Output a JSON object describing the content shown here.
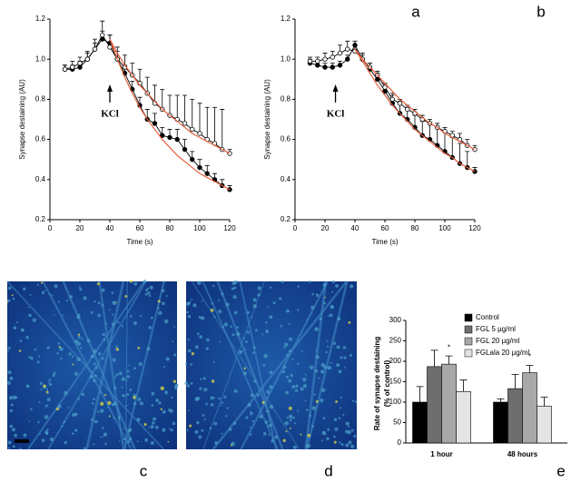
{
  "chart_data": [
    {
      "type": "line",
      "panel_label": "a",
      "x_label": "Time (s)",
      "y_label": "Synapse destaining (AU)",
      "annotation": {
        "text": "KCl",
        "x": 40
      },
      "x": [
        10,
        15,
        20,
        25,
        30,
        35,
        40,
        45,
        50,
        55,
        60,
        65,
        70,
        75,
        80,
        85,
        90,
        95,
        100,
        105,
        110,
        115,
        120
      ],
      "xlim": [
        0,
        120
      ],
      "xticks": [
        0,
        20,
        40,
        60,
        80,
        100,
        120
      ],
      "ylim": [
        0.2,
        1.2
      ],
      "yticks": [
        0.2,
        0.4,
        0.6,
        0.8,
        {
          "value": 1,
          "label": "1.0"
        },
        1.2
      ],
      "series": [
        {
          "color": "#000000",
          "marker": "filled",
          "values": [
            0.95,
            0.95,
            0.96,
            1.0,
            1.05,
            1.1,
            1.08,
            1.0,
            0.93,
            0.85,
            0.77,
            0.7,
            0.68,
            0.62,
            0.61,
            0.6,
            0.55,
            0.5,
            0.46,
            0.43,
            0.4,
            0.37,
            0.35
          ],
          "errors": [
            0.02,
            0.02,
            0.03,
            0.03,
            0.03,
            0.04,
            0.04,
            0.04,
            0.04,
            0.04,
            0.04,
            0.05,
            0.05,
            0.04,
            0.04,
            0.05,
            0.05,
            0.04,
            0.04,
            0.04,
            0.03,
            0.03,
            0.02
          ]
        },
        {
          "color": "#000000",
          "marker": "open",
          "values": [
            0.95,
            0.96,
            0.98,
            1.0,
            1.05,
            1.12,
            1.06,
            1.0,
            0.96,
            0.92,
            0.88,
            0.83,
            0.78,
            0.75,
            0.72,
            0.7,
            0.68,
            0.65,
            0.63,
            0.6,
            0.58,
            0.55,
            0.53
          ],
          "errors": [
            0.02,
            0.03,
            0.03,
            0.04,
            0.05,
            0.07,
            0.06,
            0.06,
            0.06,
            0.06,
            0.07,
            0.08,
            0.09,
            0.1,
            0.1,
            0.12,
            0.14,
            0.15,
            0.15,
            0.16,
            0.18,
            0.2,
            0.02
          ]
        },
        {
          "color": "#e8603c",
          "marker": "none",
          "values": [
            null,
            null,
            null,
            null,
            null,
            null,
            1.1,
            1.0,
            0.91,
            0.83,
            0.76,
            0.7,
            0.65,
            0.6,
            0.56,
            0.52,
            0.49,
            0.46,
            0.43,
            0.41,
            0.39,
            0.37,
            0.35
          ]
        },
        {
          "color": "#e8603c",
          "marker": "none",
          "values": [
            null,
            null,
            null,
            null,
            null,
            null,
            1.1,
            1.03,
            0.97,
            0.92,
            0.87,
            0.83,
            0.79,
            0.75,
            0.72,
            0.69,
            0.66,
            0.63,
            0.61,
            0.59,
            0.57,
            0.55,
            0.53
          ]
        }
      ]
    },
    {
      "type": "line",
      "panel_label": "b",
      "x_label": "Time (s)",
      "y_label": "Synapse destaining (AU)",
      "annotation": {
        "text": "KCl",
        "x": 27
      },
      "x": [
        10,
        15,
        20,
        25,
        30,
        35,
        40,
        45,
        50,
        55,
        60,
        65,
        70,
        75,
        80,
        85,
        90,
        95,
        100,
        105,
        110,
        115,
        120
      ],
      "xlim": [
        0,
        120
      ],
      "xticks": [
        0,
        20,
        40,
        60,
        80,
        100,
        120
      ],
      "ylim": [
        0.2,
        1.2
      ],
      "yticks": [
        0.2,
        0.4,
        0.6,
        0.8,
        {
          "value": 1,
          "label": "1.0"
        },
        1.2
      ],
      "series": [
        {
          "color": "#000000",
          "marker": "filled",
          "values": [
            0.98,
            0.97,
            0.96,
            0.96,
            0.97,
            1.0,
            1.07,
            1.0,
            0.95,
            0.9,
            0.84,
            0.78,
            0.73,
            0.7,
            0.66,
            0.62,
            0.6,
            0.57,
            0.54,
            0.51,
            0.48,
            0.46,
            0.44
          ],
          "errors": [
            0.02,
            0.02,
            0.02,
            0.02,
            0.02,
            0.02,
            0.02,
            0.03,
            0.03,
            0.03,
            0.04,
            0.05,
            0.06,
            0.06,
            0.06,
            0.07,
            0.08,
            0.09,
            0.1,
            0.1,
            0.1,
            0.08,
            0.02
          ]
        },
        {
          "color": "#000000",
          "marker": "open",
          "values": [
            0.99,
            0.99,
            1.0,
            1.01,
            1.03,
            1.05,
            1.04,
            1.0,
            0.96,
            0.92,
            0.86,
            0.8,
            0.78,
            0.75,
            0.73,
            0.7,
            0.68,
            0.66,
            0.64,
            0.62,
            0.6,
            0.57,
            0.55
          ],
          "errors": [
            0.02,
            0.02,
            0.03,
            0.03,
            0.04,
            0.04,
            0.03,
            0.02,
            0.02,
            0.02,
            0.02,
            0.02,
            0.02,
            0.02,
            0.02,
            0.02,
            0.02,
            0.02,
            0.02,
            0.02,
            0.03,
            0.03,
            0.02
          ]
        },
        {
          "color": "#e8603c",
          "marker": "none",
          "values": [
            null,
            null,
            null,
            null,
            null,
            null,
            1.05,
            0.99,
            0.93,
            0.87,
            0.82,
            0.77,
            0.73,
            0.69,
            0.65,
            0.62,
            0.59,
            0.56,
            0.53,
            0.51,
            0.48,
            0.46,
            0.44
          ]
        },
        {
          "color": "#e8603c",
          "marker": "none",
          "values": [
            null,
            null,
            null,
            null,
            null,
            null,
            1.05,
            1.0,
            0.96,
            0.92,
            0.88,
            0.84,
            0.8,
            0.77,
            0.74,
            0.71,
            0.68,
            0.66,
            0.63,
            0.61,
            0.59,
            0.57,
            0.55
          ]
        }
      ]
    },
    {
      "type": "bar",
      "panel_label": "e",
      "y_label": [
        "Rate of synapse destaining",
        "(% of control)"
      ],
      "categories": [
        "1 hour",
        "48 hours"
      ],
      "ylim": [
        0,
        300
      ],
      "yticks": [
        0,
        50,
        100,
        150,
        200,
        250,
        300
      ],
      "annotations": [
        "*",
        "*"
      ],
      "series": [
        {
          "name": "Control",
          "color": "#000000",
          "values": [
            100,
            100
          ],
          "errors": [
            38,
            8
          ]
        },
        {
          "name": "FGL 5 µg/ml",
          "color": "#6e6e6e",
          "values": [
            187,
            133
          ],
          "errors": [
            40,
            35
          ]
        },
        {
          "name": "FGL 20 µg/ml",
          "color": "#a8a8a8",
          "values": [
            193,
            172
          ],
          "errors": [
            20,
            18
          ]
        },
        {
          "name": "FGLala 20 µg/ml",
          "color": "#e4e4e4",
          "values": [
            126,
            90
          ],
          "errors": [
            28,
            22
          ]
        }
      ]
    }
  ],
  "images": [
    {
      "label": "c"
    },
    {
      "label": "d"
    }
  ]
}
